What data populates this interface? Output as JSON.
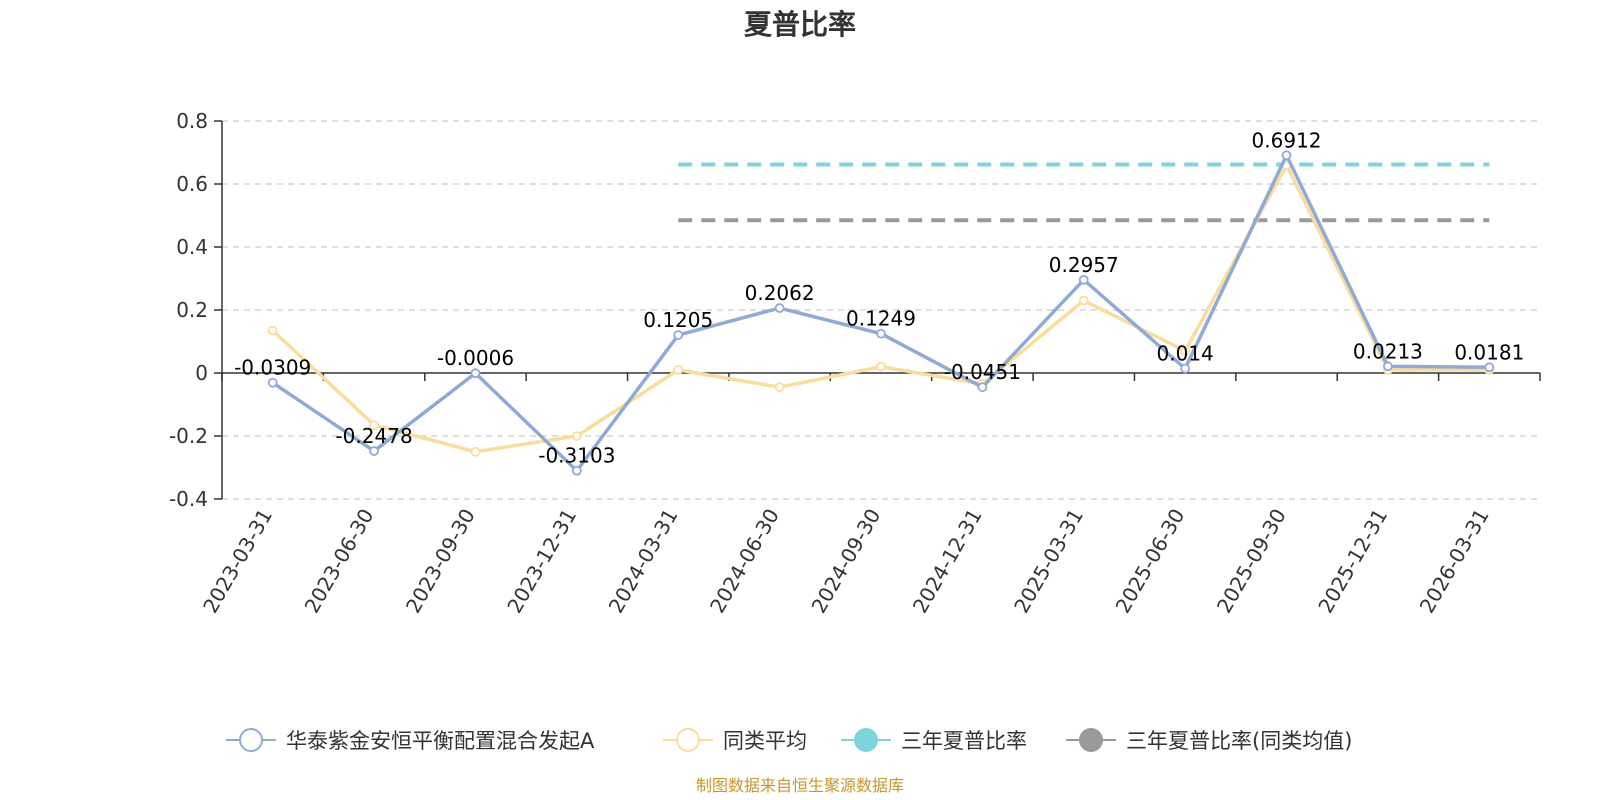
{
  "chart_data": {
    "type": "line",
    "title": "夏普比率",
    "source_note": "制图数据来自恒生聚源数据库",
    "categories": [
      "2023-03-31",
      "2023-06-30",
      "2023-09-30",
      "2023-12-31",
      "2024-03-31",
      "2024-06-30",
      "2024-09-30",
      "2024-12-31",
      "2025-03-31",
      "2025-06-30",
      "2025-09-30",
      "2025-12-31",
      "2026-03-31"
    ],
    "y_ticks": [
      "0.8",
      "0.6",
      "0.4",
      "0.2",
      "0",
      "-0.2",
      "-0.4"
    ],
    "ylim": [
      -0.4,
      0.8
    ],
    "grid": true,
    "legend_position": "bottom",
    "series": [
      {
        "name": "华泰紫金安恒平衡配置混合发起A",
        "color": "#8eaad8",
        "values": [
          -0.0309,
          -0.2478,
          -0.0006,
          -0.3103,
          0.1205,
          0.2062,
          0.1249,
          -0.0451,
          0.2957,
          0.014,
          0.6912,
          0.0213,
          0.0181
        ],
        "labels": [
          "-0.0309",
          "-0.2478",
          "-0.0006",
          "-0.3103",
          "0.1205",
          "0.2062",
          "0.1249",
          "-0.0451",
          "0.2957",
          "0.014",
          "0.6912",
          "0.0213",
          "0.0181"
        ]
      },
      {
        "name": "同类平均",
        "color": "#fbdc9b",
        "values": [
          0.135,
          -0.165,
          -0.25,
          -0.2,
          0.01,
          -0.045,
          0.02,
          -0.035,
          0.23,
          0.07,
          0.66,
          0.01,
          0.01
        ]
      },
      {
        "name": "三年夏普比率",
        "color": "#7fd3db",
        "value": 0.662,
        "range": [
          "2024-03-31",
          "2026-03-31"
        ]
      },
      {
        "name": "三年夏普比率(同类均值)",
        "color": "#999999",
        "value": 0.485,
        "range": [
          "2024-03-31",
          "2026-03-31"
        ]
      }
    ]
  }
}
